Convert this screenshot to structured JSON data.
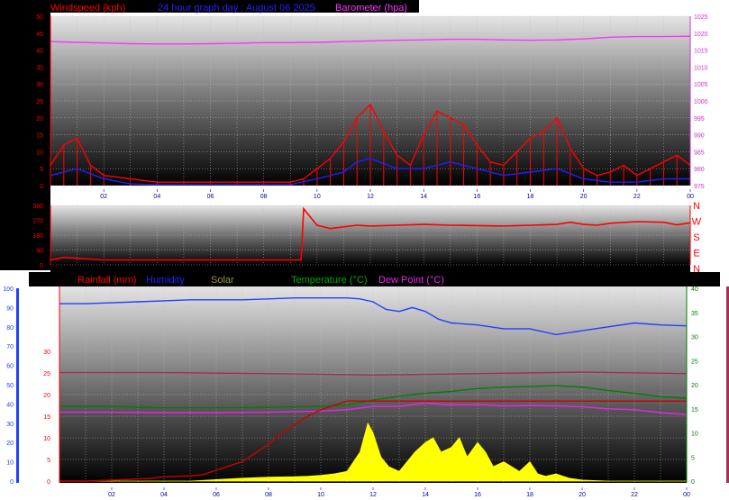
{
  "header": {
    "windspeed_label": "Windspeed (kph)",
    "title": "24 hour graph day : August 06 2025",
    "barometer_label": "Barometer (hpa)"
  },
  "legend_bottom": {
    "rainfall": "Rainfall (mm)",
    "humidity": "Humidity",
    "solar": "Solar",
    "temperature": "Temperature (°C)",
    "dewpoint": "Dew Point (°C)"
  },
  "compass": [
    "N",
    "W",
    "S",
    "E",
    "N"
  ],
  "colors": {
    "wind": "#ff0000",
    "wind_avg": "#2020ff",
    "barometer": "#ff33ff",
    "rain": "#cc0000",
    "humidity": "#2040ff",
    "solar": "#ffff00",
    "temperature": "#008000",
    "dewpoint": "#ee22ee",
    "extra_temp": "#a03050"
  },
  "chart_data": [
    {
      "type": "line",
      "title": "24 hour graph day : August 06 2025",
      "x_ticks": [
        "02",
        "04",
        "06",
        "08",
        "10",
        "12",
        "14",
        "16",
        "18",
        "20",
        "22",
        "00"
      ],
      "left_axis": {
        "label": "Windspeed (kph)",
        "ylim": [
          0,
          50
        ],
        "ticks": [
          0,
          5,
          10,
          15,
          20,
          25,
          30,
          35,
          40,
          45,
          50
        ]
      },
      "right_axis": {
        "label": "Barometer (hpa)",
        "ylim": [
          975,
          1025
        ],
        "ticks": [
          975,
          980,
          985,
          990,
          995,
          1000,
          1005,
          1010,
          1015,
          1020,
          1025
        ]
      },
      "series": [
        {
          "name": "Windspeed (kph)",
          "axis": "left",
          "x": [
            0,
            0.5,
            1,
            1.5,
            2,
            3,
            4,
            5,
            6,
            7,
            8,
            9,
            9.5,
            10,
            10.5,
            11,
            11.5,
            12,
            12.5,
            13,
            13.5,
            14,
            14.5,
            15,
            15.5,
            16,
            16.5,
            17,
            17.5,
            18,
            18.5,
            19,
            19.5,
            20,
            20.5,
            21,
            21.5,
            22,
            22.5,
            23,
            23.5,
            24
          ],
          "values": [
            6,
            12,
            14,
            6,
            3,
            2,
            1,
            1,
            1,
            1,
            1,
            1,
            2,
            5,
            8,
            13,
            20,
            24,
            16,
            9,
            6,
            15,
            22,
            20,
            18,
            12,
            7,
            6,
            10,
            14,
            16,
            20,
            11,
            5,
            3,
            4,
            6,
            3,
            5,
            7,
            9,
            6
          ]
        },
        {
          "name": "Windspeed average",
          "axis": "left",
          "x": [
            0,
            1,
            2,
            3,
            4,
            5,
            6,
            7,
            8,
            9,
            10,
            11,
            11.5,
            12,
            13,
            14,
            15,
            16,
            17,
            18,
            19,
            20,
            21,
            22,
            23,
            24
          ],
          "values": [
            3,
            5,
            2,
            0.5,
            0.3,
            0.3,
            0.3,
            0.3,
            0.3,
            0.3,
            2,
            4,
            7,
            8,
            5,
            5,
            7,
            5,
            3,
            4,
            5,
            2,
            1,
            1,
            2,
            2
          ]
        },
        {
          "name": "Barometer (hpa)",
          "axis": "right",
          "x": [
            0,
            1,
            2,
            3,
            4,
            5,
            6,
            7,
            8,
            9,
            10,
            11,
            12,
            13,
            14,
            15,
            16,
            17,
            18,
            19,
            20,
            21,
            22,
            23,
            24
          ],
          "values": [
            1017.5,
            1017.3,
            1017.1,
            1016.9,
            1016.8,
            1016.8,
            1016.9,
            1017.0,
            1017.2,
            1017.2,
            1017.3,
            1017.5,
            1017.7,
            1017.9,
            1018.0,
            1018.2,
            1018.2,
            1018.0,
            1017.9,
            1018.0,
            1018.3,
            1018.8,
            1019.0,
            1019.0,
            1019.1
          ]
        }
      ]
    },
    {
      "type": "line",
      "title": "",
      "x_ticks": [
        "02",
        "04",
        "06",
        "08",
        "10",
        "12",
        "14",
        "16",
        "18",
        "20",
        "22",
        "00"
      ],
      "left_axis": {
        "label": "",
        "ylim": [
          0,
          360
        ],
        "ticks": [
          0,
          90,
          180,
          270,
          360
        ]
      },
      "right_labels": [
        "N",
        "W",
        "S",
        "E",
        "N"
      ],
      "series": [
        {
          "name": "Wind direction",
          "x": [
            0,
            0.5,
            1,
            2,
            3,
            4,
            5,
            6,
            7,
            8,
            9,
            9.4,
            9.5,
            10,
            10.5,
            11,
            11.5,
            12,
            13,
            14,
            15,
            16,
            17,
            18,
            18.5,
            19,
            19.5,
            20,
            20.5,
            21,
            22,
            23,
            23.5,
            24
          ],
          "values": [
            30,
            45,
            40,
            30,
            30,
            30,
            30,
            30,
            30,
            30,
            30,
            30,
            340,
            240,
            220,
            230,
            240,
            235,
            240,
            245,
            240,
            238,
            235,
            240,
            242,
            245,
            258,
            245,
            240,
            252,
            262,
            258,
            242,
            255
          ]
        }
      ]
    },
    {
      "type": "line",
      "title": "",
      "x_ticks": [
        "02",
        "04",
        "06",
        "08",
        "10",
        "12",
        "14",
        "16",
        "18",
        "20",
        "22",
        "00"
      ],
      "left_axis": {
        "label": "Humidity",
        "ylim": [
          0,
          100
        ],
        "ticks": [
          0,
          10,
          20,
          30,
          40,
          50,
          60,
          70,
          80,
          90,
          100
        ]
      },
      "inner_left_axis": {
        "label": "Rainfall (mm)",
        "ylim": [
          0,
          30
        ],
        "ticks": [
          0,
          5,
          10,
          15,
          20,
          25,
          30
        ]
      },
      "right_axis": {
        "label": "Temperature (°C)",
        "ylim": [
          0,
          40
        ],
        "ticks": [
          0,
          5,
          10,
          15,
          20,
          25,
          30,
          35,
          40
        ]
      },
      "series": [
        {
          "name": "Humidity",
          "axis": "left",
          "x": [
            0,
            1,
            2,
            3,
            4,
            5,
            6,
            7,
            8,
            9,
            10,
            11,
            11.5,
            12,
            12.5,
            13,
            13.5,
            14,
            14.5,
            15,
            16,
            17,
            18,
            19,
            20,
            21,
            22,
            23,
            24
          ],
          "values": [
            92,
            92,
            92.5,
            93,
            93.5,
            94,
            94,
            94,
            94.5,
            95,
            95,
            95,
            94.5,
            93,
            89,
            88,
            90,
            88,
            84,
            82,
            81,
            79,
            79,
            76,
            78,
            80,
            82,
            81,
            80.5
          ]
        },
        {
          "name": "Rainfall (mm)",
          "axis": "inner",
          "x": [
            0,
            1,
            2,
            3,
            3.5,
            4,
            5,
            5.5,
            6,
            6.5,
            7,
            7.5,
            8,
            8.5,
            9,
            9.5,
            10,
            10.5,
            11,
            12,
            13,
            14,
            15,
            16,
            17,
            18,
            19,
            20,
            21,
            22,
            23,
            24
          ],
          "values": [
            0,
            0,
            0.2,
            0.5,
            0.6,
            1,
            1.2,
            1.5,
            2.5,
            3.5,
            4.5,
            6.5,
            8.5,
            11,
            13,
            15,
            16.5,
            17.5,
            18.5,
            18.5,
            18.5,
            18.5,
            18.5,
            18.5,
            18.5,
            18.5,
            18.5,
            18.5,
            18.5,
            18.5,
            18.5,
            18.5
          ]
        },
        {
          "name": "Temperature (°C)",
          "axis": "right",
          "x": [
            0,
            2,
            4,
            6,
            8,
            10,
            11,
            12,
            13,
            14,
            15,
            16,
            17,
            18,
            19,
            20,
            21,
            22,
            23,
            24
          ],
          "values": [
            15.5,
            15.5,
            15.2,
            15.2,
            15.3,
            15.5,
            15.8,
            16.8,
            17.6,
            18.2,
            18.6,
            19.2,
            19.5,
            19.6,
            19.8,
            19.5,
            18.8,
            18.2,
            17.5,
            17.2
          ]
        },
        {
          "name": "Dew Point (°C)",
          "axis": "right",
          "x": [
            0,
            2,
            4,
            6,
            8,
            10,
            11,
            12,
            13,
            14,
            15,
            16,
            17,
            18,
            19,
            20,
            21,
            22,
            23,
            24
          ],
          "values": [
            14.3,
            14.3,
            14.2,
            14.2,
            14.3,
            14.5,
            14.8,
            15.5,
            15.5,
            16.2,
            15.8,
            15.9,
            15.6,
            15.7,
            15.6,
            15.4,
            15.0,
            14.8,
            14.2,
            13.8
          ]
        },
        {
          "name": "Solar",
          "axis": "right",
          "x": [
            0,
            5,
            6,
            7,
            8,
            9,
            9.5,
            10,
            10.5,
            11,
            11.5,
            11.8,
            12,
            12.3,
            12.6,
            13,
            13.3,
            13.6,
            14,
            14.3,
            14.6,
            15,
            15.3,
            15.6,
            16,
            16.3,
            16.6,
            17,
            17.3,
            17.6,
            18,
            18.3,
            18.6,
            19,
            19.5,
            20,
            21,
            24
          ],
          "values": [
            0,
            0,
            0.3,
            0.6,
            0.8,
            0.9,
            1,
            1.2,
            1.5,
            2,
            6,
            12,
            10,
            5,
            3,
            2,
            4,
            6,
            8,
            9,
            6,
            7,
            9,
            5,
            8,
            6,
            3,
            4,
            3,
            2,
            4,
            1.5,
            1,
            1.5,
            0.6,
            0.2,
            0,
            0
          ]
        },
        {
          "name": "Indoor temperature",
          "axis": "right",
          "x": [
            0,
            4,
            8,
            12,
            16,
            20,
            24
          ],
          "values": [
            22.5,
            22.5,
            22.3,
            22.0,
            22.3,
            22.6,
            22.3
          ]
        }
      ]
    }
  ]
}
